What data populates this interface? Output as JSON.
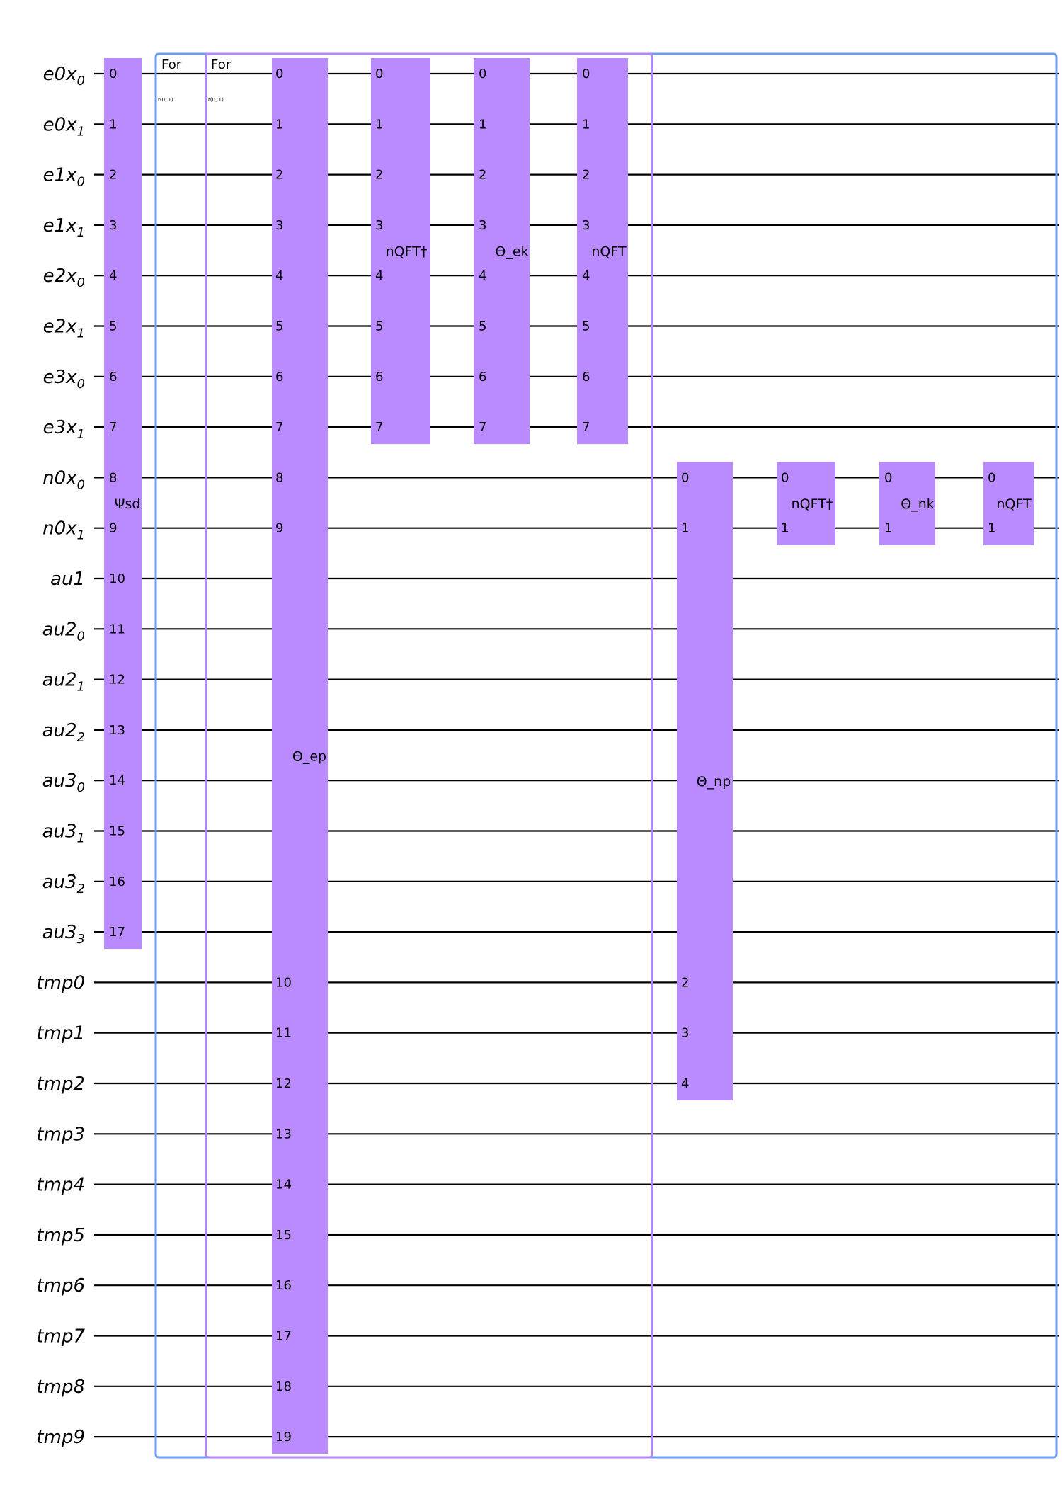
{
  "qubits": [
    {
      "base": "e0x",
      "sub": "0"
    },
    {
      "base": "e0x",
      "sub": "1"
    },
    {
      "base": "e1x",
      "sub": "0"
    },
    {
      "base": "e1x",
      "sub": "1"
    },
    {
      "base": "e2x",
      "sub": "0"
    },
    {
      "base": "e2x",
      "sub": "1"
    },
    {
      "base": "e3x",
      "sub": "0"
    },
    {
      "base": "e3x",
      "sub": "1"
    },
    {
      "base": "n0x",
      "sub": "0"
    },
    {
      "base": "n0x",
      "sub": "1"
    },
    {
      "base": "au1",
      "sub": ""
    },
    {
      "base": "au2",
      "sub": "0"
    },
    {
      "base": "au2",
      "sub": "1"
    },
    {
      "base": "au2",
      "sub": "2"
    },
    {
      "base": "au3",
      "sub": "0"
    },
    {
      "base": "au3",
      "sub": "1"
    },
    {
      "base": "au3",
      "sub": "2"
    },
    {
      "base": "au3",
      "sub": "3"
    },
    {
      "base": "tmp0",
      "sub": ""
    },
    {
      "base": "tmp1",
      "sub": ""
    },
    {
      "base": "tmp2",
      "sub": ""
    },
    {
      "base": "tmp3",
      "sub": ""
    },
    {
      "base": "tmp4",
      "sub": ""
    },
    {
      "base": "tmp5",
      "sub": ""
    },
    {
      "base": "tmp6",
      "sub": ""
    },
    {
      "base": "tmp7",
      "sub": ""
    },
    {
      "base": "tmp8",
      "sub": ""
    },
    {
      "base": "tmp9",
      "sub": ""
    }
  ],
  "loops": [
    {
      "label": "For",
      "range": "r(0, 1)",
      "color": "#6e9ef0"
    },
    {
      "label": "For",
      "range": "r(0, 1)",
      "color": "#b388f5"
    }
  ],
  "gates": [
    {
      "name": "gate-psi-sd",
      "label": "Ψsd",
      "qubits": [
        0,
        1,
        2,
        3,
        4,
        5,
        6,
        7,
        8,
        9,
        10,
        11,
        12,
        13,
        14,
        15,
        16,
        17
      ],
      "pins": [
        "0",
        "1",
        "2",
        "3",
        "4",
        "5",
        "6",
        "7",
        "8",
        "9",
        "10",
        "11",
        "12",
        "13",
        "14",
        "15",
        "16",
        "17"
      ]
    },
    {
      "name": "gate-theta-ep",
      "label": "Θ_ep",
      "qubits": [
        0,
        1,
        2,
        3,
        4,
        5,
        6,
        7,
        8,
        9,
        18,
        19,
        20,
        21,
        22,
        23,
        24,
        25,
        26,
        27
      ],
      "pins": [
        "0",
        "1",
        "2",
        "3",
        "4",
        "5",
        "6",
        "7",
        "8",
        "9",
        "10",
        "11",
        "12",
        "13",
        "14",
        "15",
        "16",
        "17",
        "18",
        "19"
      ]
    },
    {
      "name": "gate-nqft-dagger-e",
      "label": "nQFT†",
      "qubits": [
        0,
        1,
        2,
        3,
        4,
        5,
        6,
        7
      ],
      "pins": [
        "0",
        "1",
        "2",
        "3",
        "4",
        "5",
        "6",
        "7"
      ]
    },
    {
      "name": "gate-theta-ek",
      "label": "Θ_ek",
      "qubits": [
        0,
        1,
        2,
        3,
        4,
        5,
        6,
        7
      ],
      "pins": [
        "0",
        "1",
        "2",
        "3",
        "4",
        "5",
        "6",
        "7"
      ]
    },
    {
      "name": "gate-nqft-e",
      "label": "nQFT",
      "qubits": [
        0,
        1,
        2,
        3,
        4,
        5,
        6,
        7
      ],
      "pins": [
        "0",
        "1",
        "2",
        "3",
        "4",
        "5",
        "6",
        "7"
      ]
    },
    {
      "name": "gate-theta-np",
      "label": "Θ_np",
      "qubits": [
        8,
        9,
        18,
        19,
        20
      ],
      "pins": [
        "0",
        "1",
        "2",
        "3",
        "4"
      ]
    },
    {
      "name": "gate-nqft-dagger-n",
      "label": "nQFT†",
      "qubits": [
        8,
        9
      ],
      "pins": [
        "0",
        "1"
      ]
    },
    {
      "name": "gate-theta-nk",
      "label": "Θ_nk",
      "qubits": [
        8,
        9
      ],
      "pins": [
        "0",
        "1"
      ]
    },
    {
      "name": "gate-nqft-n",
      "label": "nQFT",
      "qubits": [
        8,
        9
      ],
      "pins": [
        "0",
        "1"
      ]
    }
  ],
  "colors": {
    "gate_fill": "#b98bff",
    "outer_loop": "#6e9ef0",
    "inner_loop": "#b388f5",
    "wire": "#000000"
  }
}
